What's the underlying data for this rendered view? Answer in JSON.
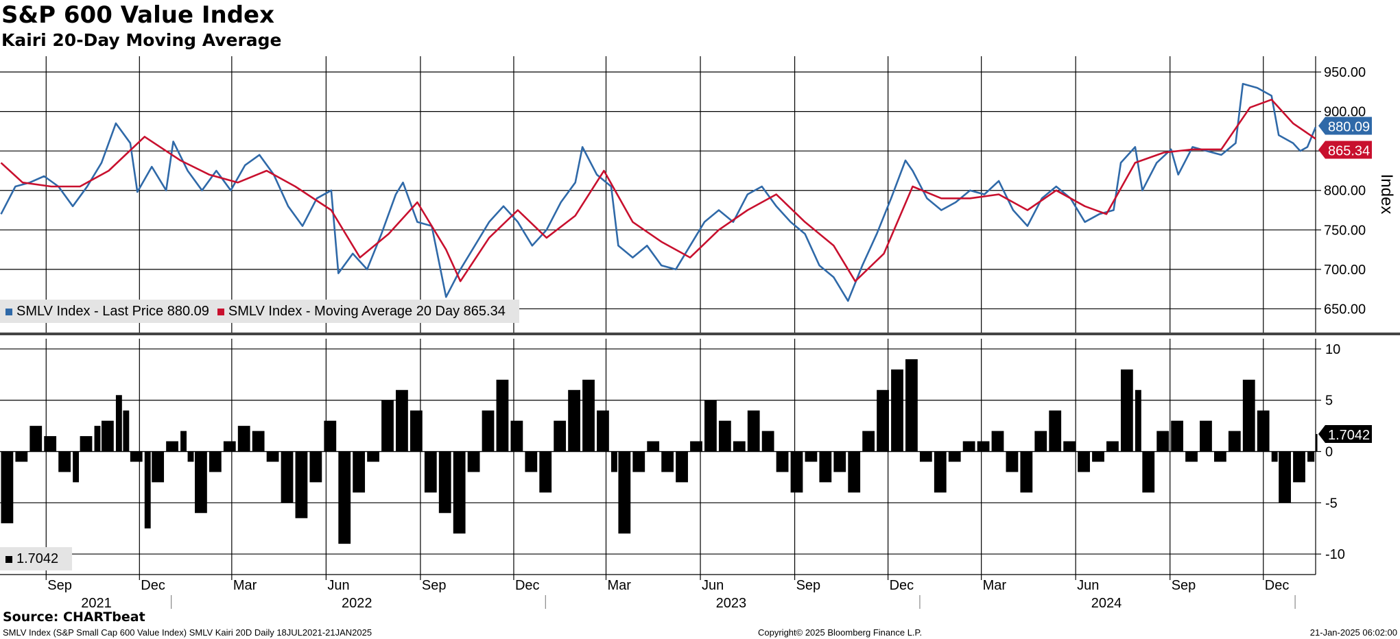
{
  "header": {
    "title": "S&P 600 Value Index",
    "subtitle": "Kairi 20-Day Moving Average"
  },
  "legend_top": [
    {
      "color": "#2f69a8",
      "label": "SMLV Index - Last Price 880.09"
    },
    {
      "color": "#c8102e",
      "label": "SMLV Index - Moving Average 20 Day 865.34"
    }
  ],
  "legend_bottom": [
    {
      "color": "#000000",
      "label": "1.7042"
    }
  ],
  "footer": {
    "source": "Source: CHARTbeat",
    "description": "SMLV Index (S&P Small Cap 600 Value Index) SMLV Kairi 20D  Daily 18JUL2021-21JAN2025",
    "copyright": "Copyright© 2025 Bloomberg Finance L.P.",
    "timestamp": "21-Jan-2025 06:02:00"
  },
  "colors": {
    "price": "#2f69a8",
    "average": "#c8102e",
    "kairi": "#000000"
  },
  "chart_data": [
    {
      "type": "line",
      "ylabel": "Index",
      "ylim": [
        620,
        970
      ],
      "yticks": [
        "650.00",
        "700.00",
        "750.00",
        "800.00",
        "850.00",
        "900.00",
        "950.00"
      ],
      "grid": true,
      "legend_position": "bottom-left",
      "x_range": [
        "2021-07-18",
        "2025-01-21"
      ],
      "last_value_labels": [
        "880.09",
        "865.34"
      ],
      "series": [
        {
          "name": "SMLV Index - Last Price",
          "points": [
            [
              "2021-07-19",
              770
            ],
            [
              "2021-08-02",
              805
            ],
            [
              "2021-08-16",
              810
            ],
            [
              "2021-08-30",
              818
            ],
            [
              "2021-09-13",
              805
            ],
            [
              "2021-09-27",
              780
            ],
            [
              "2021-10-11",
              805
            ],
            [
              "2021-10-25",
              835
            ],
            [
              "2021-11-08",
              885
            ],
            [
              "2021-11-22",
              860
            ],
            [
              "2021-11-29",
              798
            ],
            [
              "2021-12-13",
              830
            ],
            [
              "2021-12-27",
              800
            ],
            [
              "2022-01-03",
              862
            ],
            [
              "2022-01-17",
              825
            ],
            [
              "2022-01-31",
              800
            ],
            [
              "2022-02-14",
              825
            ],
            [
              "2022-02-28",
              800
            ],
            [
              "2022-03-14",
              832
            ],
            [
              "2022-03-28",
              845
            ],
            [
              "2022-04-11",
              820
            ],
            [
              "2022-04-25",
              780
            ],
            [
              "2022-05-09",
              755
            ],
            [
              "2022-05-23",
              790
            ],
            [
              "2022-06-06",
              800
            ],
            [
              "2022-06-13",
              695
            ],
            [
              "2022-06-27",
              720
            ],
            [
              "2022-07-11",
              700
            ],
            [
              "2022-07-25",
              745
            ],
            [
              "2022-08-08",
              795
            ],
            [
              "2022-08-15",
              810
            ],
            [
              "2022-08-29",
              760
            ],
            [
              "2022-09-12",
              755
            ],
            [
              "2022-09-26",
              665
            ],
            [
              "2022-10-10",
              700
            ],
            [
              "2022-10-24",
              730
            ],
            [
              "2022-11-07",
              760
            ],
            [
              "2022-11-21",
              780
            ],
            [
              "2022-12-05",
              760
            ],
            [
              "2022-12-19",
              730
            ],
            [
              "2023-01-02",
              750
            ],
            [
              "2023-01-16",
              785
            ],
            [
              "2023-01-30",
              810
            ],
            [
              "2023-02-06",
              855
            ],
            [
              "2023-02-20",
              820
            ],
            [
              "2023-03-06",
              805
            ],
            [
              "2023-03-13",
              730
            ],
            [
              "2023-03-27",
              715
            ],
            [
              "2023-04-10",
              730
            ],
            [
              "2023-04-24",
              705
            ],
            [
              "2023-05-08",
              700
            ],
            [
              "2023-05-22",
              730
            ],
            [
              "2023-06-05",
              760
            ],
            [
              "2023-06-19",
              775
            ],
            [
              "2023-07-03",
              760
            ],
            [
              "2023-07-17",
              795
            ],
            [
              "2023-07-31",
              805
            ],
            [
              "2023-08-14",
              780
            ],
            [
              "2023-08-28",
              760
            ],
            [
              "2023-09-11",
              745
            ],
            [
              "2023-09-25",
              705
            ],
            [
              "2023-10-09",
              690
            ],
            [
              "2023-10-23",
              660
            ],
            [
              "2023-11-06",
              705
            ],
            [
              "2023-11-20",
              745
            ],
            [
              "2023-12-04",
              790
            ],
            [
              "2023-12-18",
              838
            ],
            [
              "2023-12-25",
              825
            ],
            [
              "2024-01-08",
              790
            ],
            [
              "2024-01-22",
              775
            ],
            [
              "2024-02-05",
              785
            ],
            [
              "2024-02-19",
              800
            ],
            [
              "2024-03-04",
              795
            ],
            [
              "2024-03-18",
              812
            ],
            [
              "2024-04-01",
              775
            ],
            [
              "2024-04-15",
              755
            ],
            [
              "2024-04-29",
              790
            ],
            [
              "2024-05-13",
              805
            ],
            [
              "2024-05-27",
              790
            ],
            [
              "2024-06-10",
              760
            ],
            [
              "2024-06-24",
              770
            ],
            [
              "2024-07-08",
              775
            ],
            [
              "2024-07-15",
              835
            ],
            [
              "2024-07-29",
              855
            ],
            [
              "2024-08-05",
              800
            ],
            [
              "2024-08-19",
              835
            ],
            [
              "2024-09-02",
              852
            ],
            [
              "2024-09-09",
              820
            ],
            [
              "2024-09-23",
              855
            ],
            [
              "2024-10-07",
              850
            ],
            [
              "2024-10-21",
              845
            ],
            [
              "2024-11-04",
              860
            ],
            [
              "2024-11-11",
              935
            ],
            [
              "2024-11-25",
              930
            ],
            [
              "2024-12-09",
              920
            ],
            [
              "2024-12-16",
              870
            ],
            [
              "2024-12-30",
              860
            ],
            [
              "2025-01-06",
              850
            ],
            [
              "2025-01-13",
              855
            ],
            [
              "2025-01-21",
              880.09
            ]
          ]
        },
        {
          "name": "SMLV Index - Moving Average 20 Day",
          "points": [
            [
              "2021-07-19",
              835
            ],
            [
              "2021-08-09",
              810
            ],
            [
              "2021-09-06",
              805
            ],
            [
              "2021-10-04",
              805
            ],
            [
              "2021-11-01",
              825
            ],
            [
              "2021-12-06",
              868
            ],
            [
              "2022-01-10",
              838
            ],
            [
              "2022-02-07",
              820
            ],
            [
              "2022-03-07",
              810
            ],
            [
              "2022-04-04",
              825
            ],
            [
              "2022-05-02",
              805
            ],
            [
              "2022-06-06",
              775
            ],
            [
              "2022-07-04",
              715
            ],
            [
              "2022-08-01",
              745
            ],
            [
              "2022-08-29",
              785
            ],
            [
              "2022-09-26",
              725
            ],
            [
              "2022-10-10",
              685
            ],
            [
              "2022-11-07",
              740
            ],
            [
              "2022-12-05",
              775
            ],
            [
              "2023-01-02",
              740
            ],
            [
              "2023-01-30",
              768
            ],
            [
              "2023-02-27",
              825
            ],
            [
              "2023-03-27",
              760
            ],
            [
              "2023-04-24",
              735
            ],
            [
              "2023-05-22",
              715
            ],
            [
              "2023-06-19",
              750
            ],
            [
              "2023-07-17",
              775
            ],
            [
              "2023-08-14",
              795
            ],
            [
              "2023-09-11",
              760
            ],
            [
              "2023-10-09",
              730
            ],
            [
              "2023-10-30",
              685
            ],
            [
              "2023-11-27",
              720
            ],
            [
              "2023-12-25",
              805
            ],
            [
              "2024-01-22",
              790
            ],
            [
              "2024-02-19",
              790
            ],
            [
              "2024-03-18",
              795
            ],
            [
              "2024-04-15",
              775
            ],
            [
              "2024-05-13",
              800
            ],
            [
              "2024-06-10",
              780
            ],
            [
              "2024-07-01",
              770
            ],
            [
              "2024-07-29",
              835
            ],
            [
              "2024-08-26",
              848
            ],
            [
              "2024-09-23",
              852
            ],
            [
              "2024-10-21",
              852
            ],
            [
              "2024-11-18",
              905
            ],
            [
              "2024-12-09",
              915
            ],
            [
              "2024-12-30",
              885
            ],
            [
              "2025-01-21",
              865.34
            ]
          ]
        }
      ]
    },
    {
      "type": "bar",
      "series": [
        {
          "name": "SMLV Kairi 20D"
        }
      ],
      "ylim": [
        -12,
        11
      ],
      "yticks": [
        "-10",
        "-5",
        "0",
        "5",
        "10"
      ],
      "last_value": "1.7042",
      "points": [
        [
          "2021-07-19",
          -7
        ],
        [
          "2021-08-02",
          -1
        ],
        [
          "2021-08-16",
          2.5
        ],
        [
          "2021-08-30",
          1.5
        ],
        [
          "2021-09-13",
          -2
        ],
        [
          "2021-09-27",
          -3
        ],
        [
          "2021-10-04",
          1.5
        ],
        [
          "2021-10-18",
          2.5
        ],
        [
          "2021-10-25",
          3
        ],
        [
          "2021-11-08",
          5.5
        ],
        [
          "2021-11-15",
          4
        ],
        [
          "2021-11-22",
          -1
        ],
        [
          "2021-12-06",
          -7.5
        ],
        [
          "2021-12-13",
          -3
        ],
        [
          "2021-12-27",
          1
        ],
        [
          "2022-01-10",
          2
        ],
        [
          "2022-01-17",
          -1
        ],
        [
          "2022-01-24",
          -6
        ],
        [
          "2022-02-07",
          -2
        ],
        [
          "2022-02-21",
          1
        ],
        [
          "2022-03-07",
          2.5
        ],
        [
          "2022-03-21",
          2
        ],
        [
          "2022-04-04",
          -1
        ],
        [
          "2022-04-18",
          -5
        ],
        [
          "2022-05-02",
          -6.5
        ],
        [
          "2022-05-16",
          -3
        ],
        [
          "2022-05-30",
          3
        ],
        [
          "2022-06-13",
          -9
        ],
        [
          "2022-06-27",
          -4
        ],
        [
          "2022-07-11",
          -1
        ],
        [
          "2022-07-25",
          5
        ],
        [
          "2022-08-08",
          6
        ],
        [
          "2022-08-22",
          4
        ],
        [
          "2022-09-05",
          -4
        ],
        [
          "2022-09-19",
          -6
        ],
        [
          "2022-10-03",
          -8
        ],
        [
          "2022-10-17",
          -2
        ],
        [
          "2022-10-31",
          4
        ],
        [
          "2022-11-14",
          7
        ],
        [
          "2022-11-28",
          3
        ],
        [
          "2022-12-12",
          -2
        ],
        [
          "2022-12-26",
          -4
        ],
        [
          "2023-01-09",
          3
        ],
        [
          "2023-01-23",
          6
        ],
        [
          "2023-02-06",
          7
        ],
        [
          "2023-02-20",
          4
        ],
        [
          "2023-03-06",
          -2
        ],
        [
          "2023-03-13",
          -8
        ],
        [
          "2023-03-27",
          -2
        ],
        [
          "2023-04-10",
          1
        ],
        [
          "2023-04-24",
          -2
        ],
        [
          "2023-05-08",
          -3
        ],
        [
          "2023-05-22",
          1
        ],
        [
          "2023-06-05",
          5
        ],
        [
          "2023-06-19",
          3
        ],
        [
          "2023-07-03",
          1
        ],
        [
          "2023-07-17",
          4
        ],
        [
          "2023-07-31",
          2
        ],
        [
          "2023-08-14",
          -2
        ],
        [
          "2023-08-28",
          -4
        ],
        [
          "2023-09-11",
          -1
        ],
        [
          "2023-09-25",
          -3
        ],
        [
          "2023-10-09",
          -2
        ],
        [
          "2023-10-23",
          -4
        ],
        [
          "2023-11-06",
          2
        ],
        [
          "2023-11-20",
          6
        ],
        [
          "2023-12-04",
          8
        ],
        [
          "2023-12-18",
          9
        ],
        [
          "2024-01-01",
          -1
        ],
        [
          "2024-01-15",
          -4
        ],
        [
          "2024-01-29",
          -1
        ],
        [
          "2024-02-12",
          1
        ],
        [
          "2024-02-26",
          1
        ],
        [
          "2024-03-11",
          2
        ],
        [
          "2024-03-25",
          -2
        ],
        [
          "2024-04-08",
          -4
        ],
        [
          "2024-04-22",
          2
        ],
        [
          "2024-05-06",
          4
        ],
        [
          "2024-05-20",
          1
        ],
        [
          "2024-06-03",
          -2
        ],
        [
          "2024-06-17",
          -1
        ],
        [
          "2024-07-01",
          1
        ],
        [
          "2024-07-15",
          8
        ],
        [
          "2024-07-29",
          6
        ],
        [
          "2024-08-05",
          -4
        ],
        [
          "2024-08-19",
          2
        ],
        [
          "2024-09-02",
          3
        ],
        [
          "2024-09-16",
          -1
        ],
        [
          "2024-09-30",
          3
        ],
        [
          "2024-10-14",
          -1
        ],
        [
          "2024-10-28",
          2
        ],
        [
          "2024-11-11",
          7
        ],
        [
          "2024-11-25",
          4
        ],
        [
          "2024-12-09",
          -1
        ],
        [
          "2024-12-16",
          -5
        ],
        [
          "2024-12-30",
          -3
        ],
        [
          "2025-01-13",
          -1
        ],
        [
          "2025-01-21",
          1.7042
        ]
      ]
    }
  ],
  "time_axis": {
    "months": [
      "Sep",
      "Dec",
      "Mar",
      "Jun",
      "Sep",
      "Dec",
      "Mar",
      "Jun",
      "Sep",
      "Dec",
      "Mar",
      "Jun",
      "Sep",
      "Dec"
    ],
    "years": [
      "2021",
      "2022",
      "2023",
      "2024"
    ]
  }
}
